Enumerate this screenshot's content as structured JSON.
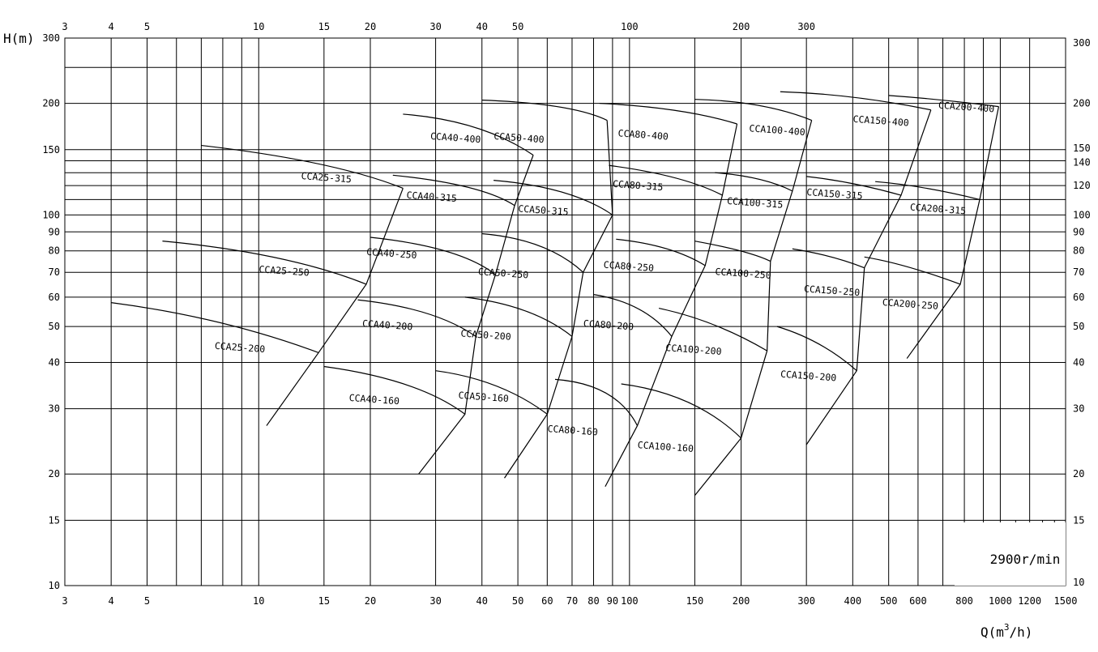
{
  "chart_data": {
    "type": "line",
    "title": "",
    "speed_label": "2900r/min",
    "x_scale": "log",
    "y_scale": "log",
    "xlim": [
      3,
      1500
    ],
    "ylim": [
      10,
      300
    ],
    "xlabel": "Q(m³/h)",
    "xlabel_main": "Q(m",
    "xlabel_sup": "3",
    "xlabel_end": "/h)",
    "ylabel": "H(m)",
    "x_ticks_top": [
      "3",
      "4",
      "5",
      "10",
      "15",
      "20",
      "30",
      "40",
      "50",
      "100",
      "200",
      "300"
    ],
    "x_ticks_bottom": [
      "3",
      "4",
      "5",
      "10",
      "15",
      "20",
      "30",
      "40",
      "50",
      "60",
      "70",
      "80",
      "90",
      "100",
      "150",
      "200",
      "300",
      "400",
      "500",
      "600",
      "800",
      "1000",
      "1200",
      "1500"
    ],
    "y_ticks_left": [
      "300",
      "200",
      "150",
      "100",
      "90",
      "80",
      "70",
      "60",
      "50",
      "40",
      "30",
      "20",
      "15",
      "10"
    ],
    "y_ticks_right": [
      "300",
      "200",
      "150",
      "140",
      "120",
      "100",
      "90",
      "80",
      "70",
      "60",
      "50",
      "40",
      "30",
      "20",
      "15",
      "10"
    ],
    "grid": true,
    "series": [
      {
        "name": "CCA25-200",
        "label": "CCA25-200",
        "points": [
          [
            4,
            58
          ],
          [
            8,
            53
          ],
          [
            14.5,
            42.5
          ]
        ],
        "label_at": [
          7.6,
          43.5
        ]
      },
      {
        "name": "CCA25-250",
        "label": "CCA25-250",
        "points": [
          [
            5.5,
            85
          ],
          [
            12,
            79
          ],
          [
            19.5,
            65
          ]
        ],
        "label_at": [
          10,
          70
        ]
      },
      {
        "name": "CCA25-315",
        "label": "CCA25-315",
        "points": [
          [
            7,
            154
          ],
          [
            16,
            140
          ],
          [
            24.5,
            118
          ]
        ],
        "label_at": [
          13,
          125
        ]
      },
      {
        "name": "CCA40-160",
        "label": "CCA40-160",
        "points": [
          [
            15,
            39
          ],
          [
            27,
            36
          ],
          [
            36,
            29
          ]
        ],
        "label_at": [
          17.5,
          31.5
        ]
      },
      {
        "name": "CCA40-200",
        "label": "CCA40-200",
        "points": [
          [
            18.5,
            59
          ],
          [
            30,
            56
          ],
          [
            38.5,
            47
          ]
        ],
        "label_at": [
          19,
          50
        ]
      },
      {
        "name": "CCA40-250",
        "label": "CCA40-250",
        "points": [
          [
            20,
            87
          ],
          [
            35,
            82
          ],
          [
            43.5,
            69
          ]
        ],
        "label_at": [
          19.5,
          78
        ]
      },
      {
        "name": "CCA40-315",
        "label": "CCA40-315",
        "points": [
          [
            23,
            128
          ],
          [
            40,
            121
          ],
          [
            49,
            106
          ]
        ],
        "label_at": [
          25,
          111
        ]
      },
      {
        "name": "CCA40-400",
        "label": "CCA40-400",
        "points": [
          [
            24.5,
            187
          ],
          [
            40,
            180
          ],
          [
            55,
            145
          ]
        ],
        "label_at": [
          29,
          160
        ]
      },
      {
        "name": "CCA50-160",
        "label": "CCA50-160",
        "points": [
          [
            30,
            38
          ],
          [
            45,
            36
          ],
          [
            60,
            29
          ]
        ],
        "label_at": [
          34.5,
          32
        ]
      },
      {
        "name": "CCA50-200",
        "label": "CCA50-200",
        "points": [
          [
            36,
            60
          ],
          [
            55,
            57
          ],
          [
            70,
            47
          ]
        ],
        "label_at": [
          35,
          47
        ]
      },
      {
        "name": "CCA50-250",
        "label": "CCA50-250",
        "points": [
          [
            40,
            89
          ],
          [
            60,
            86
          ],
          [
            75,
            70
          ]
        ],
        "label_at": [
          39,
          69
        ]
      },
      {
        "name": "CCA50-315",
        "label": "CCA50-315",
        "points": [
          [
            43,
            124
          ],
          [
            70,
            119
          ],
          [
            90,
            100
          ]
        ],
        "label_at": [
          50,
          102
        ]
      },
      {
        "name": "CCA50-400",
        "label": "CCA50-400",
        "points": [
          [
            40,
            204
          ],
          [
            70,
            200
          ],
          [
            87,
            180
          ]
        ],
        "label_at": [
          43,
          160
        ]
      },
      {
        "name": "CCA80-160",
        "label": "CCA80-160",
        "points": [
          [
            63,
            36
          ],
          [
            92,
            35
          ],
          [
            105,
            27
          ]
        ],
        "label_at": [
          60,
          26
        ]
      },
      {
        "name": "CCA80-200",
        "label": "CCA80-200",
        "points": [
          [
            80,
            61
          ],
          [
            110,
            58
          ],
          [
            130,
            47
          ]
        ],
        "label_at": [
          75,
          50
        ]
      },
      {
        "name": "CCA80-250",
        "label": "CCA80-250",
        "points": [
          [
            92,
            86
          ],
          [
            130,
            83
          ],
          [
            160,
            73
          ]
        ],
        "label_at": [
          85,
          72
        ]
      },
      {
        "name": "CCA80-315",
        "label": "CCA80-315",
        "points": [
          [
            88,
            136
          ],
          [
            140,
            128
          ],
          [
            178,
            113
          ]
        ],
        "label_at": [
          90,
          119
        ]
      },
      {
        "name": "CCA80-400",
        "label": "CCA80-400",
        "points": [
          [
            83,
            200
          ],
          [
            140,
            195
          ],
          [
            195,
            176
          ]
        ],
        "label_at": [
          93,
          163
        ]
      },
      {
        "name": "CCA100-160",
        "label": "CCA100-160",
        "points": [
          [
            95,
            35
          ],
          [
            150,
            33
          ],
          [
            200,
            25
          ]
        ],
        "label_at": [
          105,
          23.5
        ]
      },
      {
        "name": "CCA100-200",
        "label": "CCA100-200",
        "points": [
          [
            120,
            56
          ],
          [
            170,
            52
          ],
          [
            235,
            43
          ]
        ],
        "label_at": [
          125,
          43
        ]
      },
      {
        "name": "CCA100-250",
        "label": "CCA100-250",
        "points": [
          [
            150,
            85
          ],
          [
            210,
            80
          ],
          [
            240,
            75
          ]
        ],
        "label_at": [
          170,
          69
        ]
      },
      {
        "name": "CCA100-315",
        "label": "CCA100-315",
        "points": [
          [
            170,
            130
          ],
          [
            230,
            127
          ],
          [
            275,
            116
          ]
        ],
        "label_at": [
          183,
          107
        ]
      },
      {
        "name": "CCA100-400",
        "label": "CCA100-400",
        "points": [
          [
            150,
            205
          ],
          [
            230,
            203
          ],
          [
            310,
            180
          ]
        ],
        "label_at": [
          210,
          168
        ]
      },
      {
        "name": "CCA150-200",
        "label": "CCA150-200",
        "points": [
          [
            250,
            50
          ],
          [
            330,
            46
          ],
          [
            410,
            38
          ]
        ],
        "label_at": [
          255,
          36.5
        ]
      },
      {
        "name": "CCA150-250",
        "label": "CCA150-250",
        "points": [
          [
            275,
            81
          ],
          [
            350,
            78
          ],
          [
            430,
            72
          ]
        ],
        "label_at": [
          295,
          62
        ]
      },
      {
        "name": "CCA150-315",
        "label": "CCA150-315",
        "points": [
          [
            300,
            127
          ],
          [
            400,
            123
          ],
          [
            540,
            113
          ]
        ],
        "label_at": [
          300,
          113
        ]
      },
      {
        "name": "CCA150-400",
        "label": "CCA150-400",
        "points": [
          [
            255,
            215
          ],
          [
            400,
            212
          ],
          [
            650,
            192
          ]
        ],
        "label_at": [
          400,
          178
        ]
      },
      {
        "name": "CCA200-250",
        "label": "CCA200-250",
        "points": [
          [
            430,
            77
          ],
          [
            550,
            74
          ],
          [
            780,
            65
          ]
        ],
        "label_at": [
          480,
          57
        ]
      },
      {
        "name": "CCA200-315",
        "label": "CCA200-315",
        "points": [
          [
            460,
            123
          ],
          [
            620,
            120
          ],
          [
            880,
            110
          ]
        ],
        "label_at": [
          570,
          103
        ]
      },
      {
        "name": "CCA200-400",
        "label": "CCA200-400",
        "points": [
          [
            500,
            210
          ],
          [
            700,
            205
          ],
          [
            990,
            196
          ]
        ],
        "label_at": [
          680,
          194
        ]
      }
    ]
  }
}
